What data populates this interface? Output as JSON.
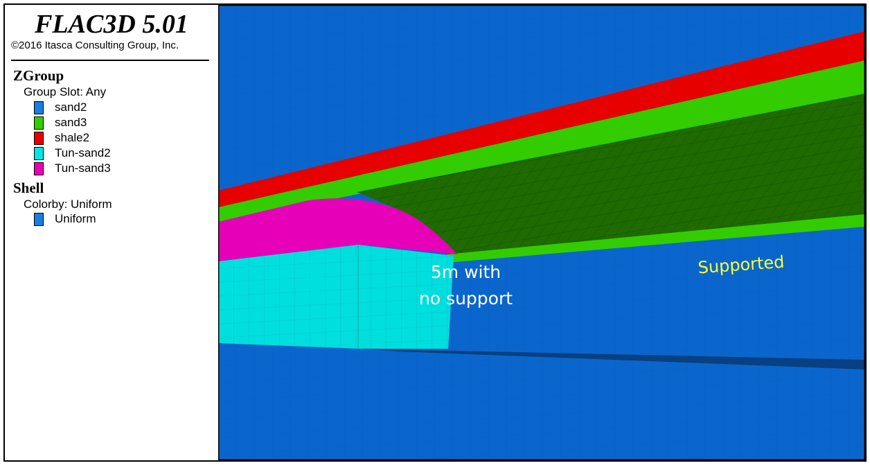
{
  "legend": {
    "title": "FLAC3D 5.01",
    "copyright": "©2016 Itasca Consulting Group, Inc.",
    "zgroup": {
      "heading": "ZGroup",
      "slot": "Group Slot: Any",
      "items": [
        {
          "label": "sand2",
          "color": "#1a7fe0"
        },
        {
          "label": "sand3",
          "color": "#33cc00"
        },
        {
          "label": "shale2",
          "color": "#e60000"
        },
        {
          "label": "Tun-sand2",
          "color": "#00e6e6"
        },
        {
          "label": "Tun-sand3",
          "color": "#e600b8"
        }
      ]
    },
    "shell": {
      "heading": "Shell",
      "colorby": "Colorby: Uniform",
      "items": [
        {
          "label": "Uniform",
          "color": "#1a7fe0"
        }
      ]
    }
  },
  "annotations": {
    "unsupported": [
      "5m with",
      "no support"
    ],
    "supported": "Supported"
  },
  "colors": {
    "sand2_dark": "#0a5fc2",
    "sand3_dark": "#1f6b00",
    "annotation_white": "#ffffff",
    "annotation_yellow": "#ffff33"
  }
}
